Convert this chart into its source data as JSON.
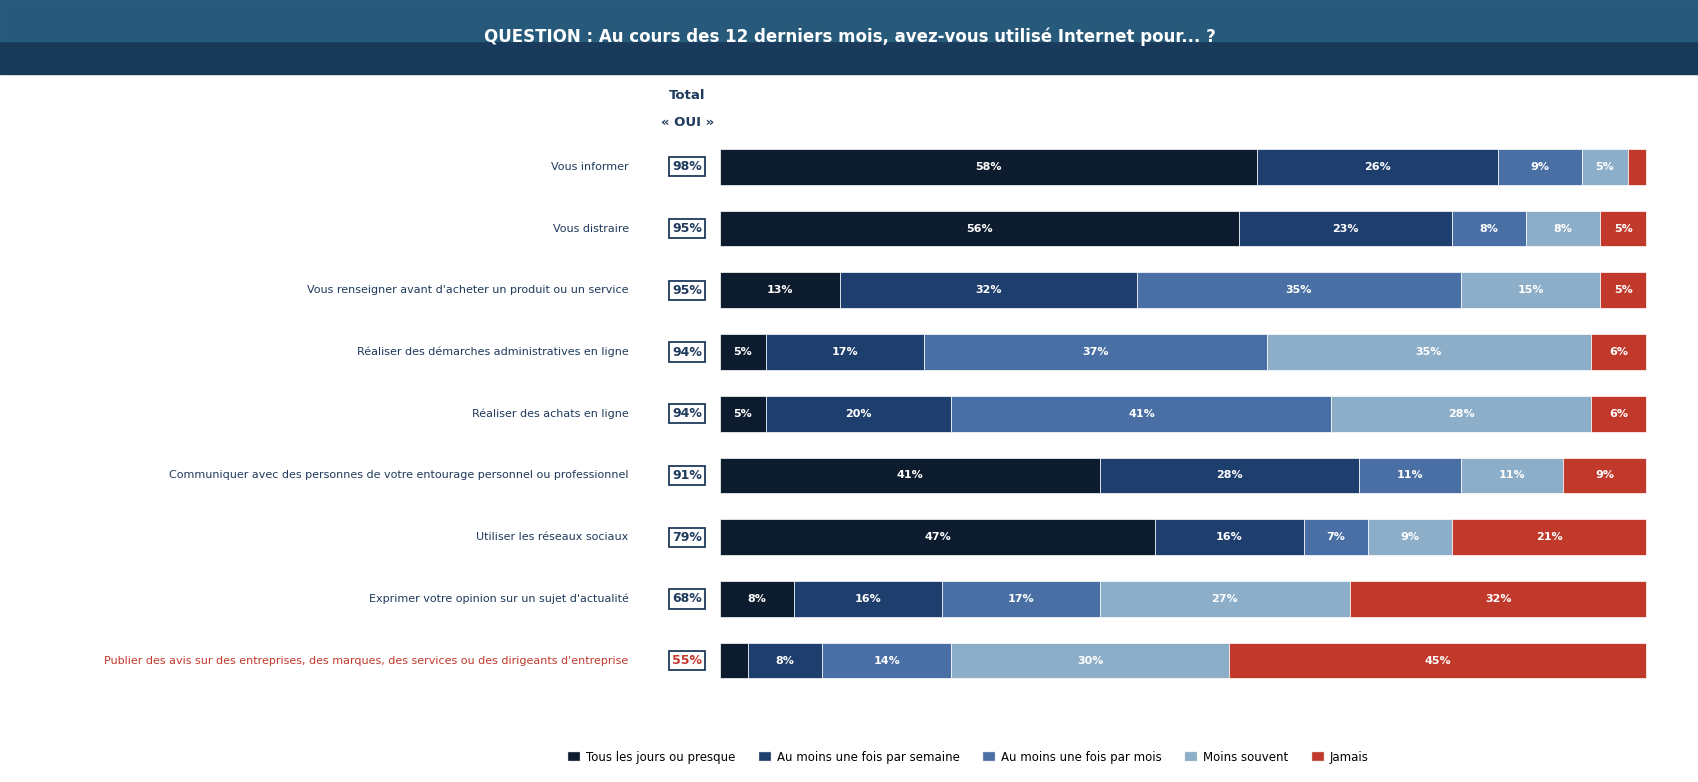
{
  "title": "QUESTION : Au cours des 12 derniers mois, avez-vous utilisé Internet pour... ?",
  "categories": [
    "Vous informer",
    "Vous distraire",
    "Vous renseigner avant d'acheter un produit ou un service",
    "Réaliser des démarches administratives en ligne",
    "Réaliser des achats en ligne",
    "Communiquer avec des personnes de votre entourage personnel ou professionnel",
    "Utiliser les réseaux sociaux",
    "Exprimer votre opinion sur un sujet d'actualité",
    "Publier des avis sur des entreprises, des marques, des services ou des dirigeants d'entreprise"
  ],
  "total_oui": [
    98,
    95,
    95,
    94,
    94,
    91,
    79,
    68,
    55
  ],
  "segments": [
    [
      58,
      26,
      9,
      5,
      2
    ],
    [
      56,
      23,
      8,
      8,
      5
    ],
    [
      13,
      32,
      35,
      15,
      5
    ],
    [
      5,
      17,
      37,
      35,
      6
    ],
    [
      5,
      20,
      41,
      28,
      6
    ],
    [
      41,
      28,
      11,
      11,
      9
    ],
    [
      47,
      16,
      7,
      9,
      21
    ],
    [
      8,
      16,
      17,
      27,
      32
    ],
    [
      3,
      8,
      14,
      30,
      45
    ]
  ],
  "colors": [
    "#0d1b2e",
    "#1e3f6e",
    "#4a6fa5",
    "#8daec8",
    "#c0392b"
  ],
  "legend_labels": [
    "Tous les jours ou presque",
    "Au moins une fois par semaine",
    "Au moins une fois par mois",
    "Moins souvent",
    "Jamais"
  ],
  "bar_height": 0.58,
  "header_bg_top": "#2a6080",
  "header_bg_bottom": "#1a3a5c",
  "bg_color": "#ffffff",
  "label_color_normal": "#1e3a5c",
  "label_color_highlight": "#c0392b",
  "box_edge_color": "#1e3a5c",
  "total_label_fontsize": 9,
  "cat_label_fontsize": 8,
  "bar_label_fontsize": 8,
  "legend_fontsize": 8.5,
  "header_fontsize": 12,
  "subtitle_fontsize": 9.5
}
